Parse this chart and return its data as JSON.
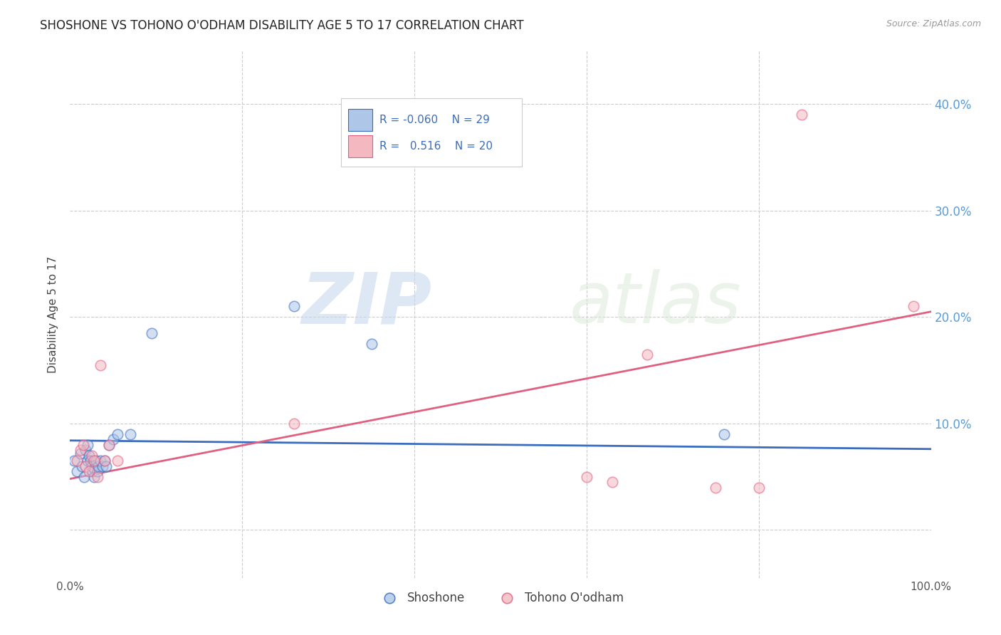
{
  "title": "SHOSHONE VS TOHONO O'ODHAM DISABILITY AGE 5 TO 17 CORRELATION CHART",
  "source": "Source: ZipAtlas.com",
  "ylabel": "Disability Age 5 to 17",
  "watermark_zip": "ZIP",
  "watermark_atlas": "atlas",
  "yticks": [
    0.0,
    0.1,
    0.2,
    0.3,
    0.4
  ],
  "ytick_labels": [
    "",
    "10.0%",
    "20.0%",
    "30.0%",
    "40.0%"
  ],
  "xlim": [
    0.0,
    1.0
  ],
  "ylim": [
    -0.045,
    0.45
  ],
  "shoshone_x": [
    0.005,
    0.008,
    0.012,
    0.014,
    0.016,
    0.018,
    0.02,
    0.02,
    0.022,
    0.024,
    0.025,
    0.026,
    0.028,
    0.028,
    0.03,
    0.032,
    0.033,
    0.035,
    0.038,
    0.04,
    0.042,
    0.045,
    0.05,
    0.055,
    0.07,
    0.095,
    0.26,
    0.35,
    0.76
  ],
  "shoshone_y": [
    0.065,
    0.055,
    0.072,
    0.06,
    0.05,
    0.075,
    0.08,
    0.065,
    0.07,
    0.065,
    0.06,
    0.055,
    0.058,
    0.05,
    0.065,
    0.055,
    0.06,
    0.065,
    0.06,
    0.065,
    0.06,
    0.08,
    0.085,
    0.09,
    0.09,
    0.185,
    0.21,
    0.175,
    0.09
  ],
  "tohono_x": [
    0.008,
    0.012,
    0.015,
    0.018,
    0.022,
    0.025,
    0.028,
    0.032,
    0.035,
    0.04,
    0.045,
    0.055,
    0.26,
    0.6,
    0.63,
    0.67,
    0.75,
    0.8,
    0.85,
    0.98
  ],
  "tohono_y": [
    0.065,
    0.075,
    0.08,
    0.06,
    0.055,
    0.07,
    0.065,
    0.05,
    0.155,
    0.065,
    0.08,
    0.065,
    0.1,
    0.05,
    0.045,
    0.165,
    0.04,
    0.04,
    0.39,
    0.21
  ],
  "shoshone_line_x0": 0.0,
  "shoshone_line_y0": 0.084,
  "shoshone_line_x1": 1.0,
  "shoshone_line_y1": 0.076,
  "tohono_line_x0": 0.0,
  "tohono_line_y0": 0.048,
  "tohono_line_x1": 1.0,
  "tohono_line_y1": 0.205,
  "shoshone_color": "#aec6e8",
  "tohono_color": "#f4b8c1",
  "shoshone_line_color": "#3a6cbf",
  "tohono_line_color": "#e06080",
  "marker_size": 110,
  "marker_alpha": 0.55
}
